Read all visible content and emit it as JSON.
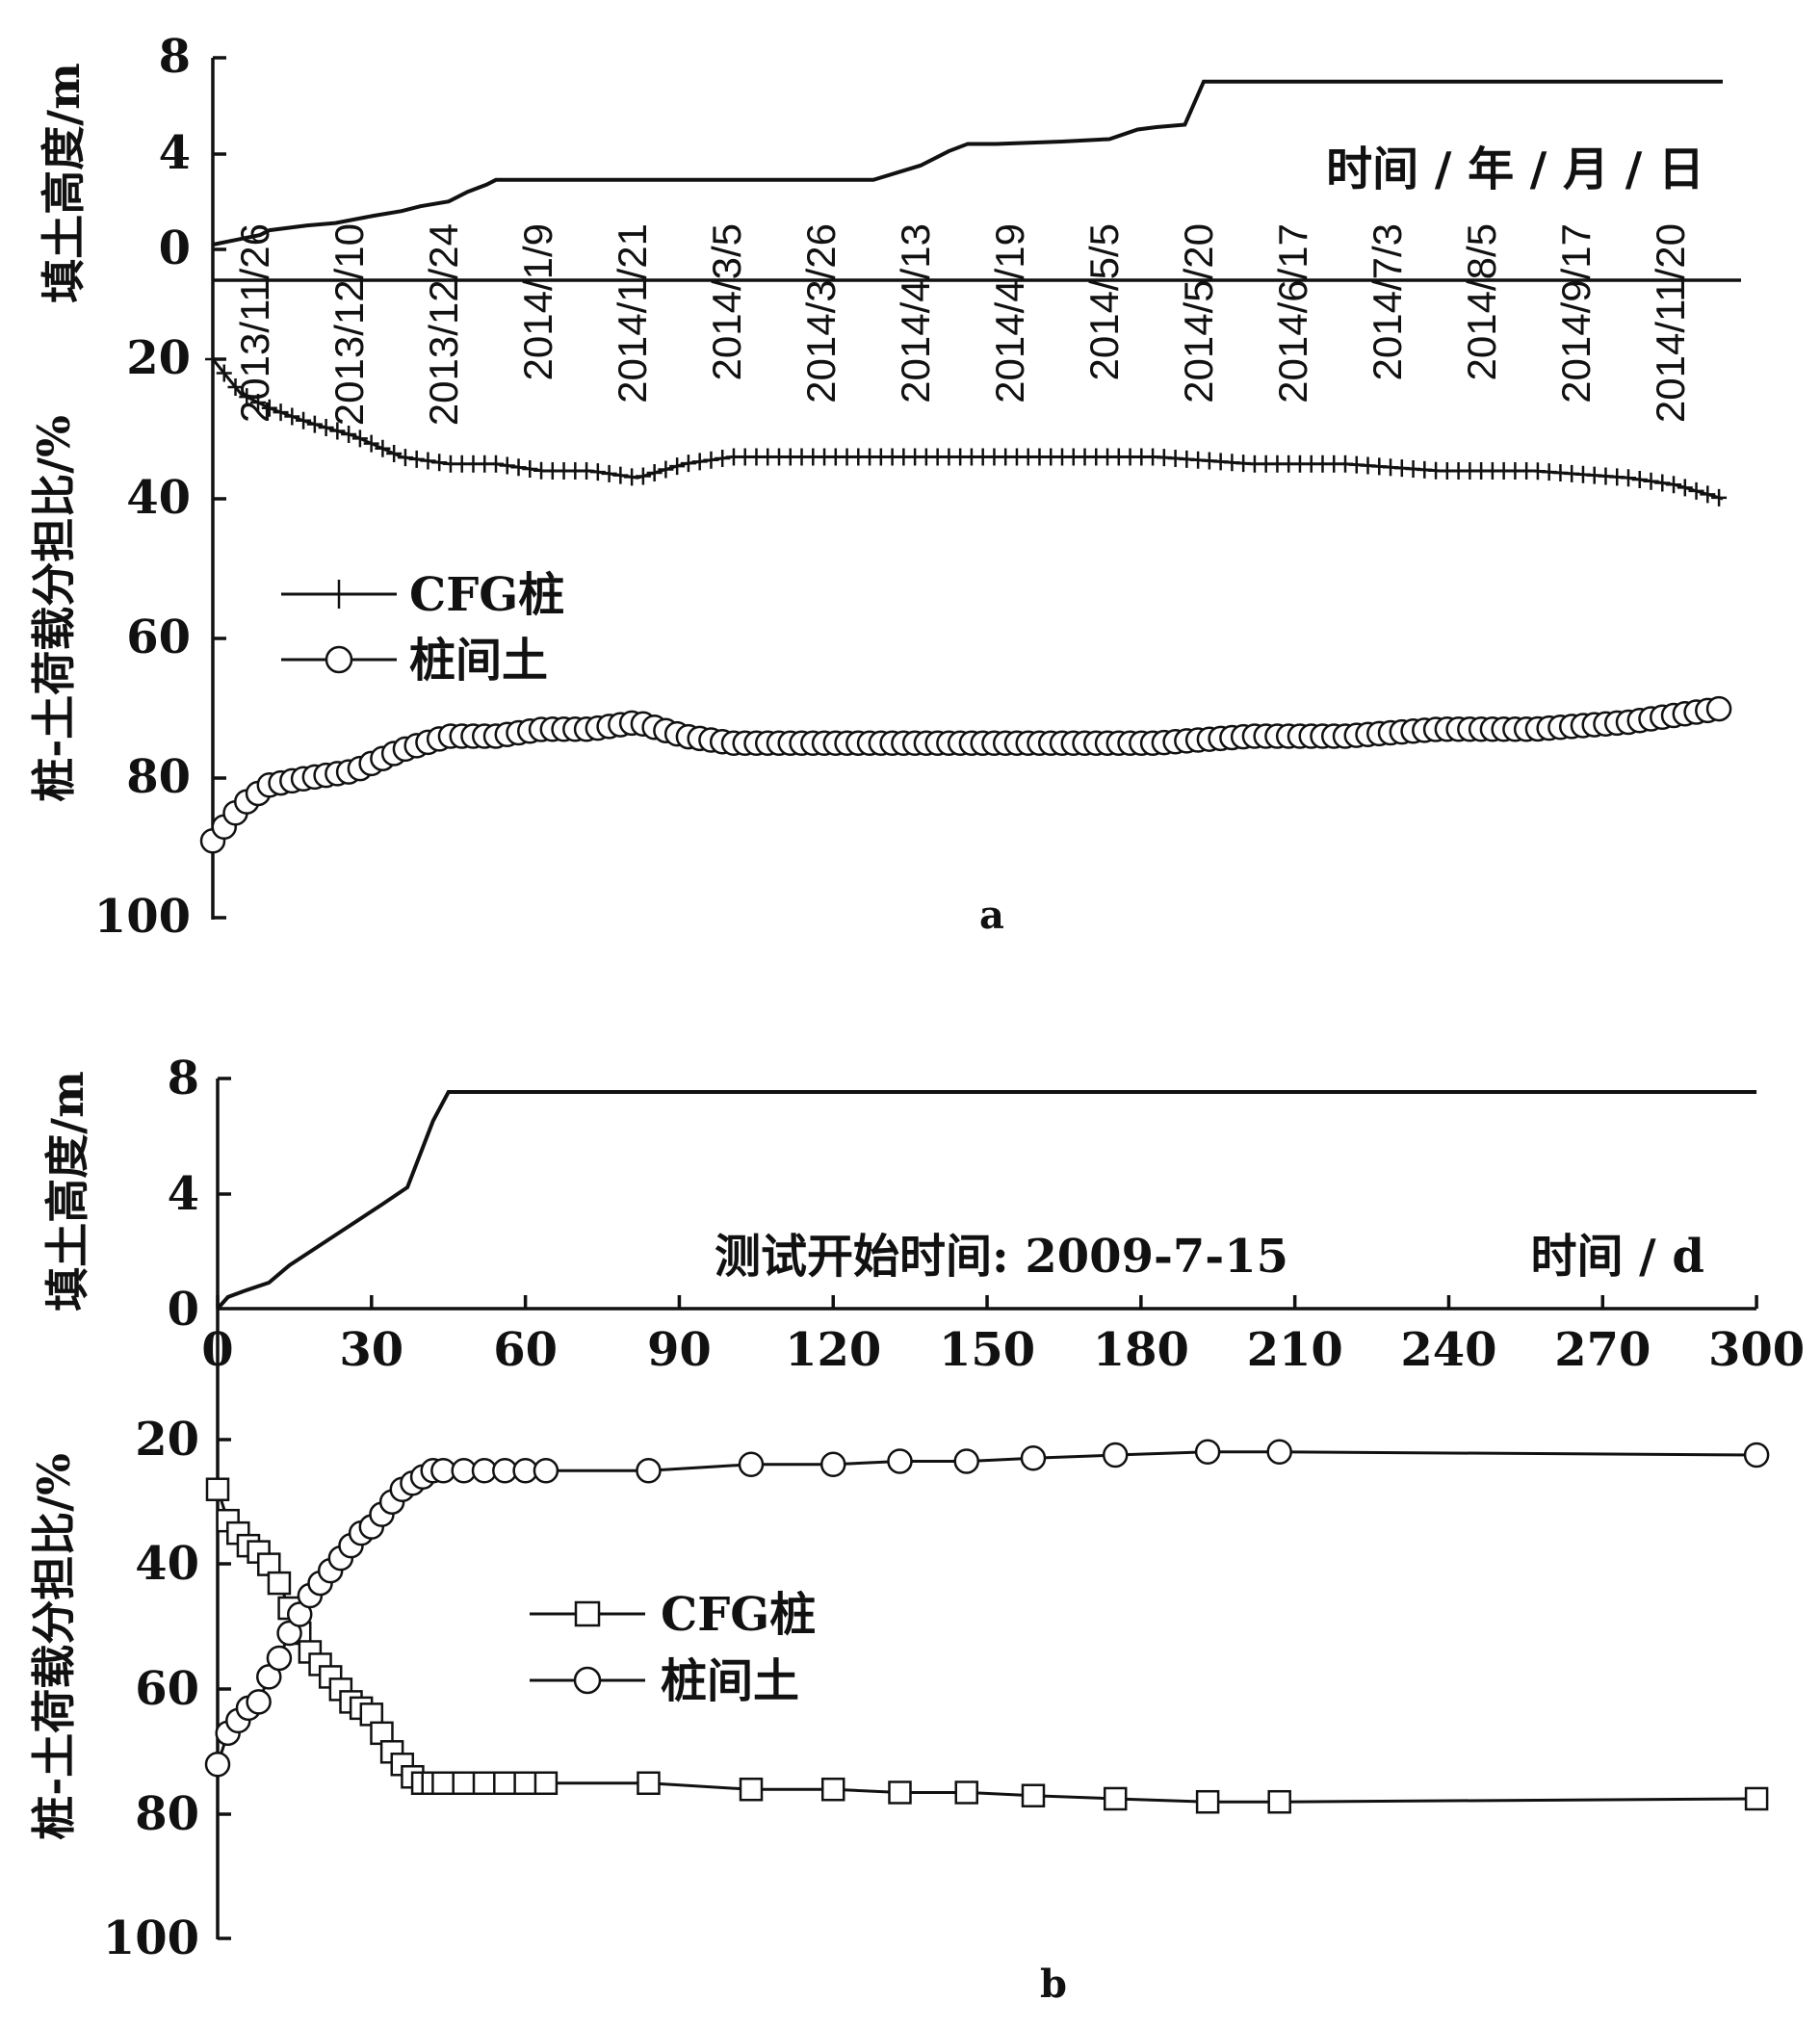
{
  "chart_data": [
    {
      "panel_label": "a",
      "type": "line",
      "time_axis_label": "时间 / 年 / 月 / 日",
      "date_ticks": [
        "2013/11/26",
        "2013/12/10",
        "2013/12/24",
        "2014/1/9",
        "2014/1/21",
        "2014/3/5",
        "2014/3/26",
        "2014/4/13",
        "2014/4/19",
        "2014/5/5",
        "2014/5/20",
        "2014/6/17",
        "2014/7/3",
        "2014/8/5",
        "2014/9/17",
        "2014/11/20"
      ],
      "fill": {
        "ylabel": "填土高度/m",
        "yticks": [
          "8",
          "4",
          "0"
        ],
        "ylim": [
          0,
          8
        ],
        "x_index": [
          0,
          0.5,
          0.6,
          1.0,
          1.3,
          1.7,
          2.0,
          2.2,
          2.5,
          2.7,
          2.9,
          3.0,
          3.2,
          3.5,
          4.0,
          4.5,
          5.0,
          5.5,
          6.0,
          7.0,
          7.5,
          7.8,
          8.0,
          8.3,
          9.0,
          9.5,
          9.8,
          10.0,
          10.3,
          10.5,
          11.0,
          12.0,
          13.0,
          14.0,
          15.0,
          16.0
        ],
        "values": [
          0.2,
          0.6,
          0.8,
          1.0,
          1.1,
          1.4,
          1.6,
          1.8,
          2.0,
          2.4,
          2.7,
          2.9,
          2.9,
          2.9,
          2.9,
          2.9,
          2.9,
          2.9,
          2.9,
          2.9,
          3.5,
          4.1,
          4.4,
          4.4,
          4.5,
          4.6,
          5.0,
          5.1,
          5.2,
          7.0,
          7.0,
          7.0,
          7.0,
          7.0,
          7.0,
          7.0
        ]
      },
      "ratio": {
        "ylabel": "桩-土荷载分担比/%",
        "yticks": [
          "20",
          "40",
          "60",
          "80",
          "100"
        ],
        "ylim": [
          0,
          100
        ],
        "x_index": [
          0,
          0.3,
          0.6,
          1.0,
          1.5,
          2.0,
          2.5,
          3.0,
          3.5,
          4.0,
          4.5,
          5.0,
          5.5,
          6.0,
          7.0,
          8.0,
          9.0,
          10.0,
          11.0,
          12.0,
          13.0,
          14.0,
          15.0,
          15.5,
          16.0
        ],
        "series": [
          {
            "name": "CFG桩",
            "marker": "plus",
            "values": [
              20,
              25,
              27,
              29,
              31,
              34,
              35,
              35,
              36,
              36,
              37,
              35,
              34,
              34,
              34,
              34,
              34,
              34,
              35,
              35,
              36,
              36,
              37,
              38,
              40
            ]
          },
          {
            "name": "桩间土",
            "marker": "circle",
            "values": [
              89,
              84,
              81,
              80,
              79,
              76,
              74,
              74,
              73,
              73,
              72,
              74,
              75,
              75,
              75,
              75,
              75,
              75,
              74,
              74,
              73,
              73,
              72,
              71,
              70
            ]
          }
        ]
      }
    },
    {
      "panel_label": "b",
      "type": "line",
      "xlabel": "时间 / d",
      "annotation": "测试开始时间: 2009-7-15",
      "xlim": [
        0,
        300
      ],
      "xticks": [
        "0",
        "30",
        "60",
        "90",
        "120",
        "150",
        "180",
        "210",
        "240",
        "270",
        "300"
      ],
      "fill": {
        "ylabel": "填土高度/m",
        "yticks": [
          "8",
          "4",
          "0"
        ],
        "ylim": [
          0,
          8
        ],
        "x": [
          0,
          2,
          5,
          10,
          14,
          20,
          26,
          32,
          37,
          42,
          45,
          50,
          100,
          200,
          300
        ],
        "values": [
          0,
          0.4,
          0.6,
          0.9,
          1.5,
          2.2,
          2.9,
          3.6,
          4.2,
          6.5,
          7.5,
          7.5,
          7.5,
          7.5,
          7.5
        ]
      },
      "ratio": {
        "ylabel": "桩-土荷载分担比/%",
        "yticks": [
          "20",
          "40",
          "60",
          "80",
          "100"
        ],
        "ylim": [
          0,
          100
        ],
        "series": [
          {
            "name": "CFG桩",
            "marker": "square",
            "x": [
              0,
              2,
              4,
              6,
              8,
              10,
              12,
              14,
              16,
              18,
              20,
              22,
              24,
              26,
              28,
              30,
              32,
              34,
              36,
              38,
              40,
              42,
              44,
              48,
              52,
              56,
              60,
              64,
              84,
              104,
              120,
              133,
              146,
              159,
              175,
              193,
              207,
              300
            ],
            "values": [
              28,
              33,
              35,
              37,
              38,
              40,
              43,
              47,
              51,
              54,
              56,
              58,
              60,
              62,
              63,
              64,
              67,
              70,
              72,
              74,
              75,
              75,
              75,
              75,
              75,
              75,
              75,
              75,
              75,
              76,
              76,
              76.5,
              76.5,
              77,
              77.5,
              78,
              78,
              77.5
            ]
          },
          {
            "name": "桩间土",
            "marker": "circle",
            "x": [
              0,
              2,
              4,
              6,
              8,
              10,
              12,
              14,
              16,
              18,
              20,
              22,
              24,
              26,
              28,
              30,
              32,
              34,
              36,
              38,
              40,
              42,
              44,
              48,
              52,
              56,
              60,
              64,
              84,
              104,
              120,
              133,
              146,
              159,
              175,
              193,
              207,
              300
            ],
            "values": [
              72,
              67,
              65,
              63,
              62,
              58,
              55,
              51,
              48,
              45,
              43,
              41,
              39,
              37,
              35,
              34,
              32,
              30,
              28,
              27,
              26,
              25,
              25,
              25,
              25,
              25,
              25,
              25,
              25,
              24,
              24,
              23.5,
              23.5,
              23,
              22.5,
              22,
              22,
              22.5
            ]
          }
        ]
      }
    }
  ]
}
